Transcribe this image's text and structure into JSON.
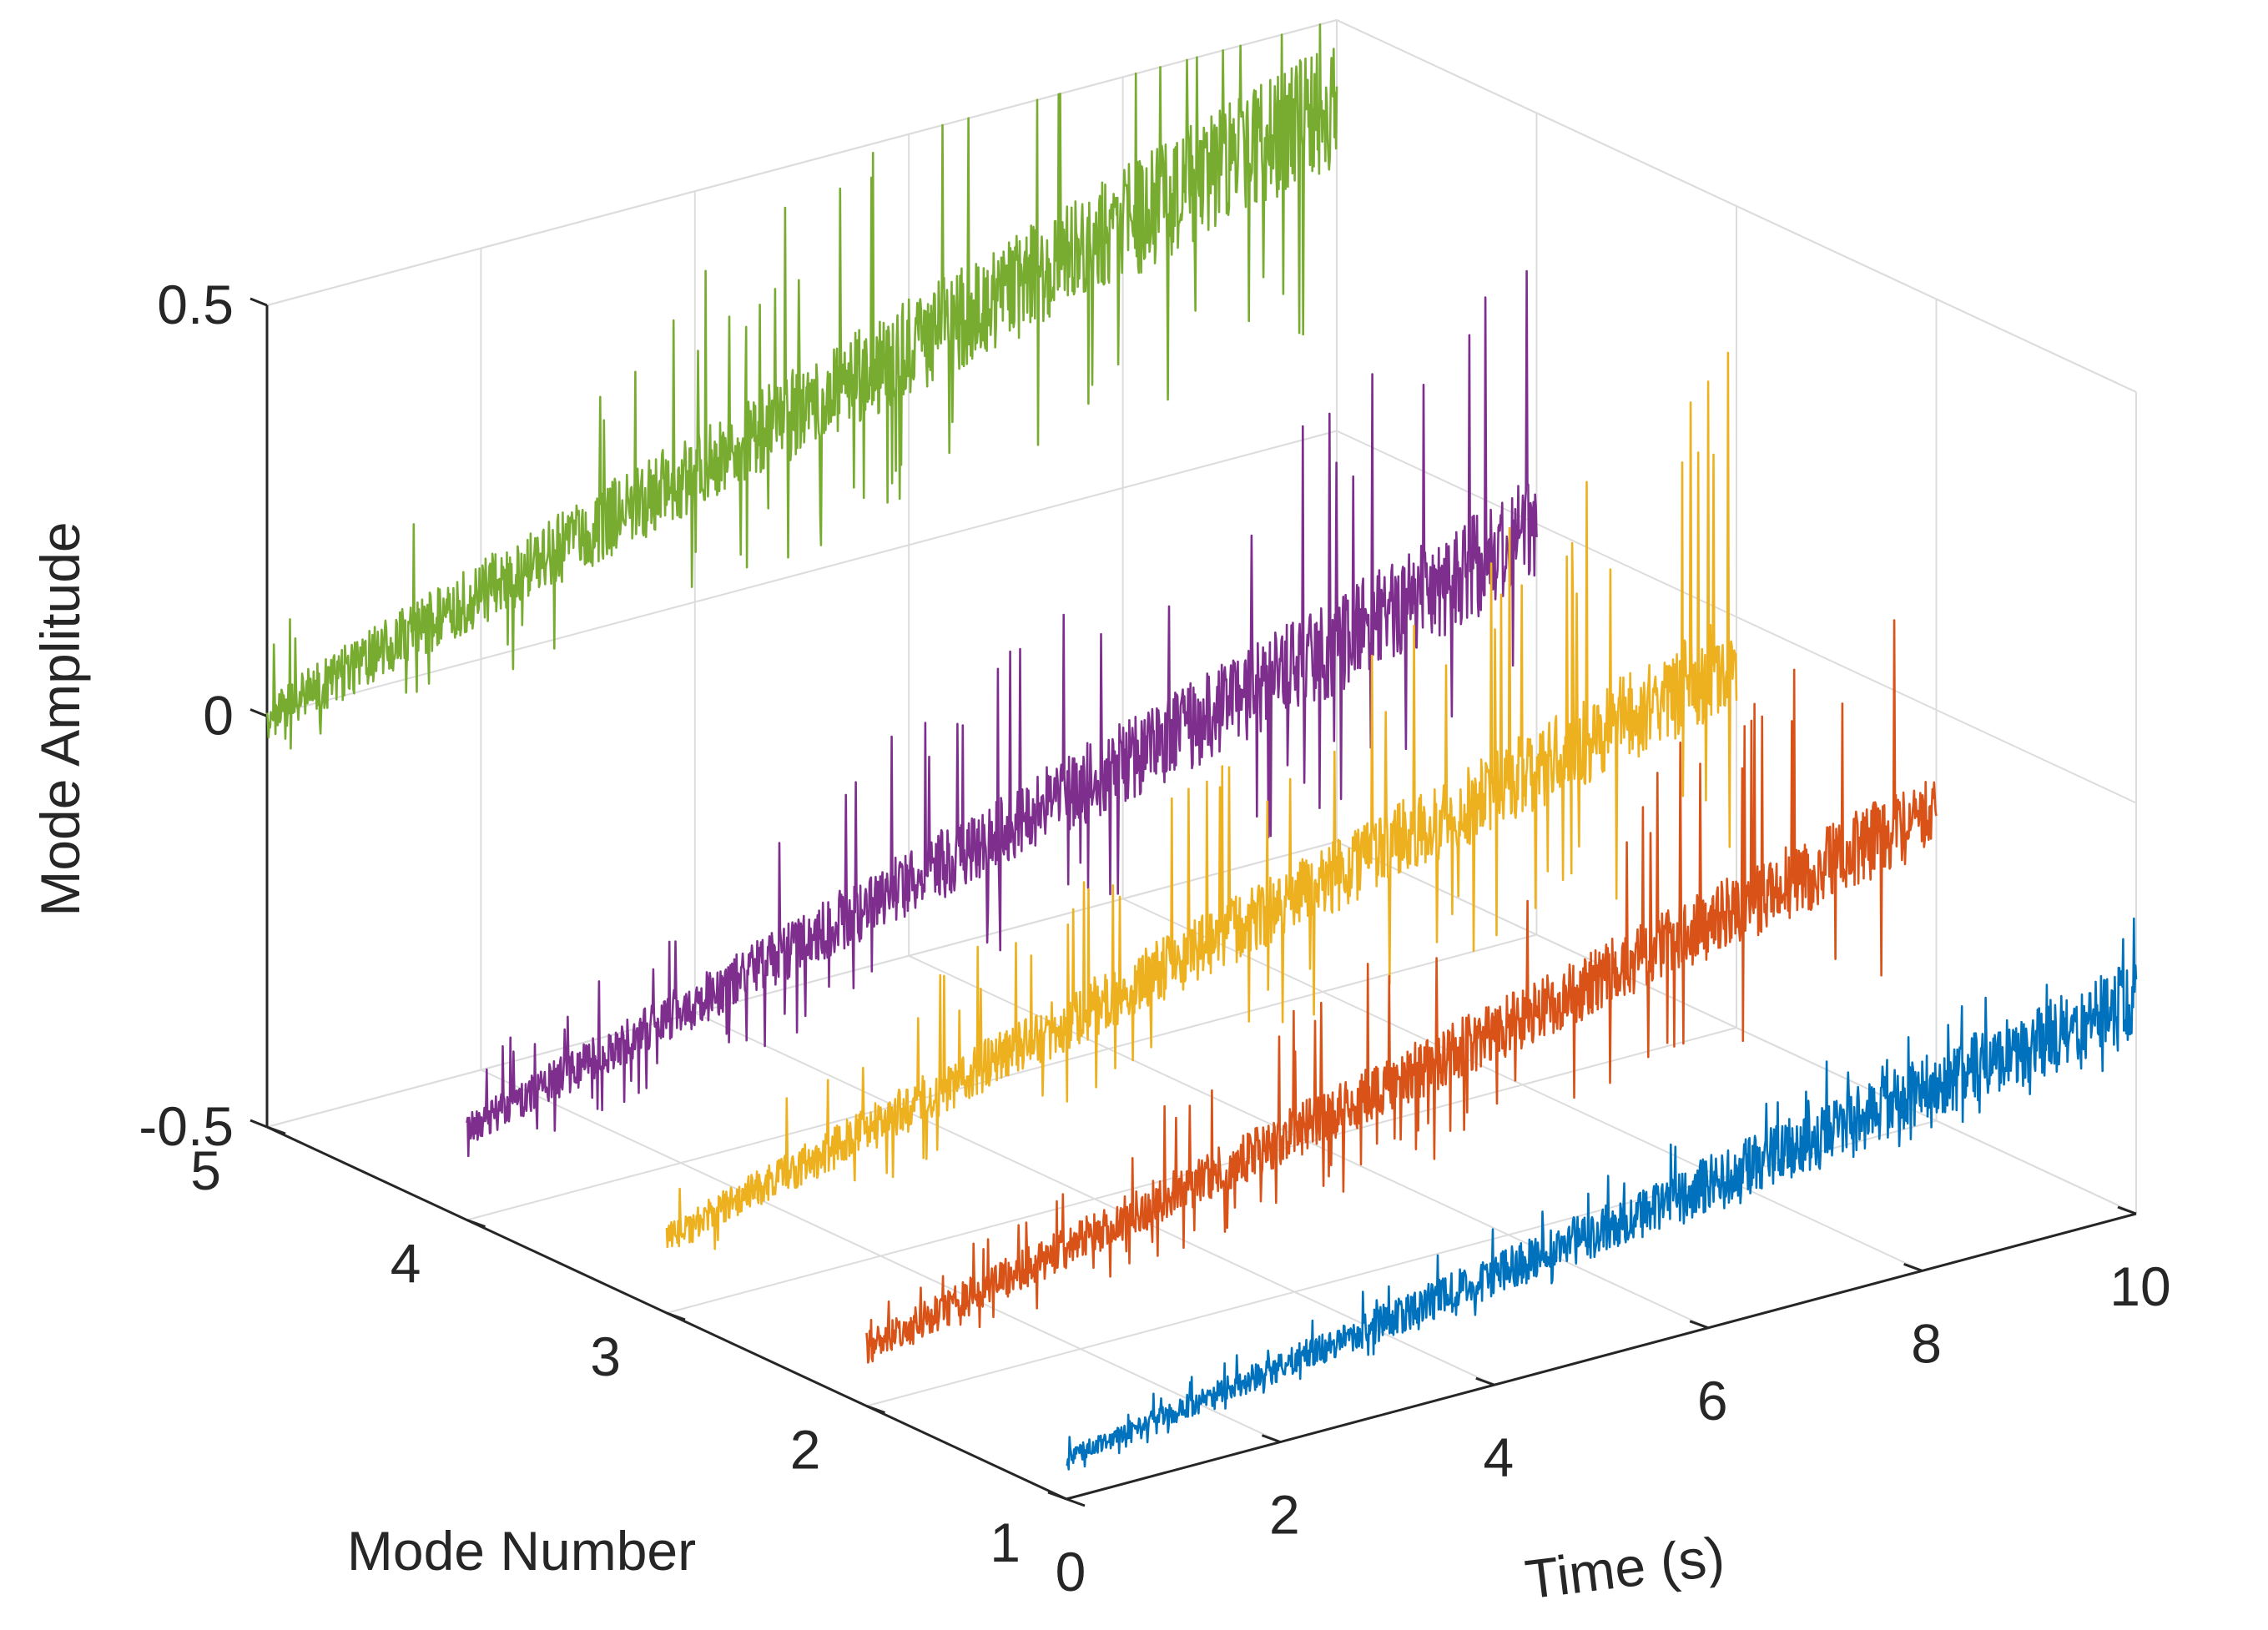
{
  "chart_data": {
    "type": "line3d",
    "title": "",
    "xlabel": "Time (s)",
    "ylabel": "Mode Number",
    "zlabel": "Mode Amplitude",
    "xlim": [
      0,
      10
    ],
    "ylim": [
      1,
      5
    ],
    "zlim": [
      -0.5,
      0.5
    ],
    "x_ticks": [
      "0",
      "2",
      "4",
      "6",
      "8",
      "10"
    ],
    "y_ticks": [
      "1",
      "2",
      "3",
      "4",
      "5"
    ],
    "z_ticks": [
      "-0.5",
      "0",
      "0.5"
    ],
    "grid": true,
    "series": [
      {
        "name": "Mode 1",
        "mode": 1,
        "color": "#0072BD",
        "trend_start": -0.45,
        "trend_end": -0.24,
        "dense_amp_start": 0.01,
        "dense_amp_end": 0.05,
        "peak_amp_start": 0.03,
        "peak_amp_end": 0.11
      },
      {
        "name": "Mode 2",
        "mode": 2,
        "color": "#D95319",
        "trend_start": -0.43,
        "trend_end": -0.12,
        "dense_amp_start": 0.02,
        "dense_amp_end": 0.05,
        "peak_amp_start": 0.05,
        "peak_amp_end": 0.3
      },
      {
        "name": "Mode 3",
        "mode": 3,
        "color": "#EDB120",
        "trend_start": -0.41,
        "trend_end": -0.05,
        "dense_amp_start": 0.02,
        "dense_amp_end": 0.06,
        "peak_amp_start": 0.06,
        "peak_amp_end": 0.38
      },
      {
        "name": "Mode 4",
        "mode": 4,
        "color": "#7E2F8E",
        "trend_start": -0.39,
        "trend_end": -0.01,
        "dense_amp_start": 0.02,
        "dense_amp_end": 0.07,
        "peak_amp_start": 0.07,
        "peak_amp_end": 0.38
      },
      {
        "name": "Mode 5",
        "mode": 5,
        "color": "#77AC30",
        "trend_start": 0.0,
        "trend_end": 0.4,
        "dense_amp_start": 0.03,
        "dense_amp_end": 0.08,
        "peak_amp_start": 0.1,
        "peak_amp_end": 0.44
      }
    ]
  }
}
